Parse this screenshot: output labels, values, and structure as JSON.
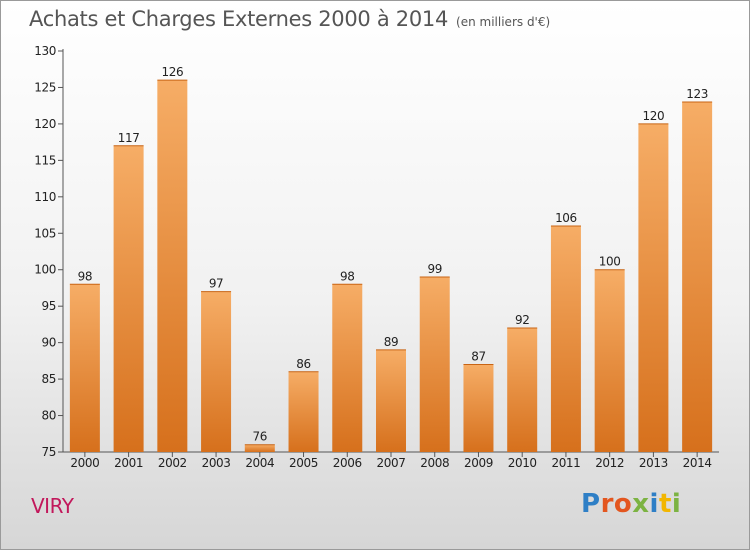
{
  "title": "Achats et Charges Externes 2000 à 2014",
  "subtitle": "(en milliers d'€)",
  "city": "VIRY",
  "logo": {
    "text": "Proxiti",
    "colors": [
      "#2e7fc6",
      "#e3561f",
      "#e3561f",
      "#7cb342",
      "#2e7fc6",
      "#f2b600",
      "#7cb342"
    ]
  },
  "colors": {
    "bar_top": "#f6ad66",
    "bar_bottom": "#d6701c",
    "title": "#555555",
    "city": "#c2185b"
  },
  "chart_data": {
    "type": "bar",
    "title": "Achats et Charges Externes 2000 à 2014",
    "unit": "(en milliers d'€)",
    "categories": [
      "2000",
      "2001",
      "2002",
      "2003",
      "2004",
      "2005",
      "2006",
      "2007",
      "2008",
      "2009",
      "2010",
      "2011",
      "2012",
      "2013",
      "2014"
    ],
    "values": [
      98,
      117,
      126,
      97,
      76,
      86,
      98,
      89,
      99,
      87,
      92,
      106,
      100,
      120,
      123
    ],
    "ylim": [
      75,
      130
    ],
    "yticks": [
      75,
      80,
      85,
      90,
      95,
      100,
      105,
      110,
      115,
      120,
      125,
      130
    ],
    "grid": false,
    "legend": "none"
  }
}
